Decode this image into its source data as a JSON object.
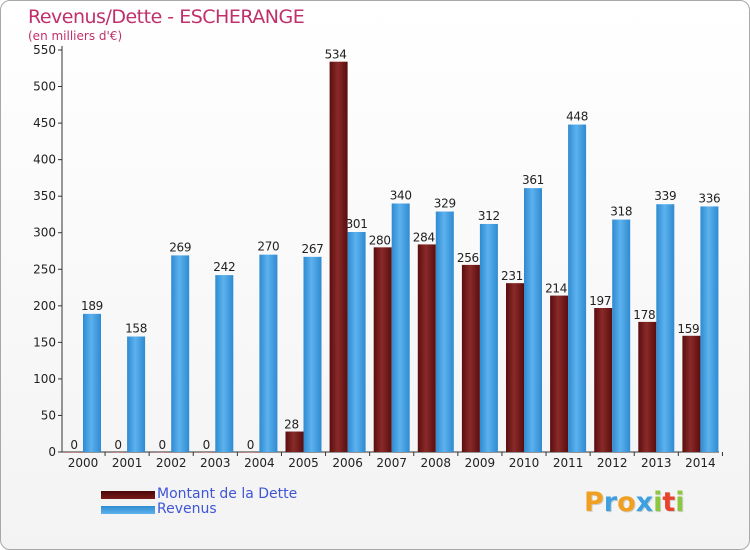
{
  "chart_data": {
    "type": "bar",
    "title": "Revenus/Dette - ESCHERANGE",
    "subtitle": "(en milliers d'€)",
    "categories": [
      "2000",
      "2001",
      "2002",
      "2003",
      "2004",
      "2005",
      "2006",
      "2007",
      "2008",
      "2009",
      "2010",
      "2011",
      "2012",
      "2013",
      "2014"
    ],
    "series": [
      {
        "name": "Montant de la Dette",
        "color": "#7a1a1a",
        "values": [
          0,
          0,
          0,
          0,
          0,
          28,
          534,
          280,
          284,
          256,
          231,
          214,
          197,
          178,
          159
        ]
      },
      {
        "name": "Revenus",
        "color": "#4aa3e3",
        "values": [
          189,
          158,
          269,
          242,
          270,
          267,
          301,
          340,
          329,
          312,
          361,
          448,
          318,
          339,
          336
        ]
      }
    ],
    "yticks": [
      0,
      50,
      100,
      150,
      200,
      250,
      300,
      350,
      400,
      450,
      500,
      550
    ],
    "ylim": [
      0,
      550
    ],
    "grid": false,
    "legend": "bottom-left",
    "xlabel": "",
    "ylabel": ""
  },
  "colors": {
    "title": "#c0306a",
    "legend_text": "#3f55d6",
    "axis": "#333333"
  },
  "logo": {
    "letters": [
      "P",
      "r",
      "o",
      "x",
      "i",
      "t",
      "i"
    ],
    "colors": [
      "#f0a020",
      "#3da0e0",
      "#f0a020",
      "#3da0e0",
      "#8dc63f",
      "#e8432d",
      "#8dc63f"
    ]
  }
}
